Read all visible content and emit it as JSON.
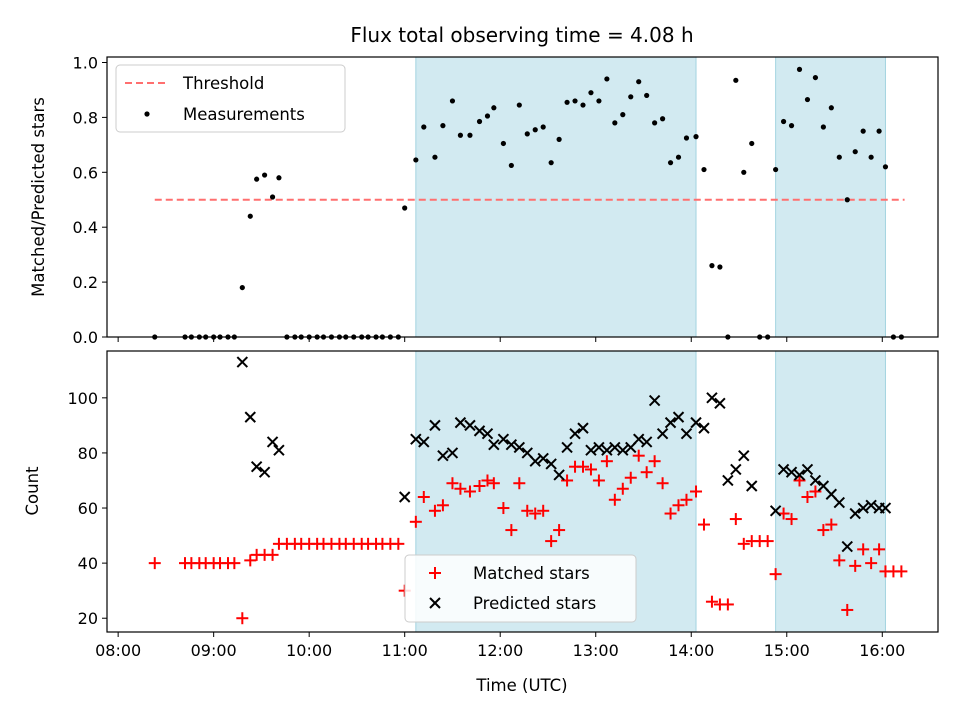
{
  "chart_data": [
    {
      "type": "scatter",
      "title": "Flux total observing time = 4.08 h",
      "xlabel": "",
      "ylabel": "Matched/Predicted stars",
      "xlim": [
        "07:53",
        "16:35"
      ],
      "ylim": [
        0,
        1.02
      ],
      "yticks": [
        0.0,
        0.2,
        0.4,
        0.6,
        0.8,
        1.0
      ],
      "yticklabels": [
        "0.0",
        "0.2",
        "0.4",
        "0.6",
        "0.8",
        "1.0"
      ],
      "xticklabels": [],
      "shaded_intervals": [
        [
          "11:07",
          "14:03"
        ],
        [
          "14:53",
          "16:02"
        ]
      ],
      "threshold": {
        "name": "Threshold",
        "y": 0.5,
        "x_range": [
          "08:23",
          "16:14"
        ],
        "color": "#ff6f6f",
        "style": "dashed"
      },
      "legend": {
        "placement": "upper left",
        "entries": [
          "Threshold",
          "Measurements"
        ]
      },
      "series": [
        {
          "name": "Measurements",
          "color": "#000000",
          "marker": "dot",
          "x": [
            "08:23",
            "08:42",
            "08:46",
            "08:51",
            "08:55",
            "09:00",
            "09:04",
            "09:09",
            "09:13",
            "09:18",
            "09:23",
            "09:27",
            "09:32",
            "09:37",
            "09:41",
            "09:46",
            "09:51",
            "09:55",
            "10:00",
            "10:05",
            "10:09",
            "10:14",
            "10:19",
            "10:23",
            "10:28",
            "10:33",
            "10:37",
            "10:42",
            "10:46",
            "10:51",
            "10:56",
            "11:00",
            "11:07",
            "11:12",
            "11:19",
            "11:24",
            "11:30",
            "11:35",
            "11:41",
            "11:47",
            "11:52",
            "11:56",
            "12:02",
            "12:07",
            "12:12",
            "12:17",
            "12:22",
            "12:27",
            "12:32",
            "12:37",
            "12:42",
            "12:47",
            "12:52",
            "12:57",
            "13:02",
            "13:07",
            "13:12",
            "13:17",
            "13:22",
            "13:27",
            "13:32",
            "13:37",
            "13:42",
            "13:47",
            "13:52",
            "13:57",
            "14:03",
            "14:08",
            "14:13",
            "14:18",
            "14:23",
            "14:28",
            "14:33",
            "14:38",
            "14:43",
            "14:48",
            "14:53",
            "14:58",
            "15:03",
            "15:08",
            "15:13",
            "15:18",
            "15:23",
            "15:28",
            "15:33",
            "15:38",
            "15:43",
            "15:48",
            "15:53",
            "15:58",
            "16:02",
            "16:07",
            "16:12"
          ],
          "y": [
            0,
            0,
            0,
            0,
            0,
            0,
            0,
            0,
            0,
            0.18,
            0.44,
            0.575,
            0.59,
            0.51,
            0.58,
            0,
            0,
            0,
            0,
            0,
            0,
            0,
            0,
            0,
            0,
            0,
            0,
            0,
            0,
            0,
            0,
            0.47,
            0.645,
            0.765,
            0.655,
            0.77,
            0.86,
            0.735,
            0.735,
            0.785,
            0.805,
            0.835,
            0.705,
            0.625,
            0.845,
            0.74,
            0.755,
            0.765,
            0.635,
            0.72,
            0.855,
            0.86,
            0.845,
            0.89,
            0.86,
            0.94,
            0.78,
            0.81,
            0.875,
            0.93,
            0.88,
            0.78,
            0.795,
            0.635,
            0.655,
            0.725,
            0.73,
            0.61,
            0.26,
            0.255,
            0,
            0.935,
            0.6,
            0.705,
            0,
            0,
            0.61,
            0.785,
            0.77,
            0.975,
            0.865,
            0.945,
            0.765,
            0.835,
            0.655,
            0.5,
            0.675,
            0.75,
            0.655,
            0.75,
            0.62,
            0,
            0
          ]
        }
      ]
    },
    {
      "type": "scatter",
      "title": "",
      "xlabel": "Time (UTC)",
      "ylabel": "Count",
      "xlim": [
        "07:53",
        "16:35"
      ],
      "ylim": [
        15,
        117
      ],
      "yticks": [
        20,
        40,
        60,
        80,
        100
      ],
      "yticklabels": [
        "20",
        "40",
        "60",
        "80",
        "100"
      ],
      "xticks": [
        "08:00",
        "09:00",
        "10:00",
        "11:00",
        "12:00",
        "13:00",
        "14:00",
        "15:00",
        "16:00"
      ],
      "xticklabels": [
        "08:00",
        "09:00",
        "10:00",
        "11:00",
        "12:00",
        "13:00",
        "14:00",
        "15:00",
        "16:00"
      ],
      "shaded_intervals": [
        [
          "11:07",
          "14:03"
        ],
        [
          "14:53",
          "16:02"
        ]
      ],
      "legend": {
        "placement": "lower center",
        "entries": [
          "Matched stars",
          "Predicted stars"
        ]
      },
      "series": [
        {
          "name": "Matched stars",
          "color": "#ff0000",
          "marker": "plus",
          "x": [
            "08:23",
            "08:42",
            "08:46",
            "08:51",
            "08:55",
            "09:00",
            "09:04",
            "09:09",
            "09:13",
            "09:18",
            "09:23",
            "09:27",
            "09:32",
            "09:37",
            "09:41",
            "09:46",
            "09:51",
            "09:55",
            "10:00",
            "10:05",
            "10:09",
            "10:14",
            "10:19",
            "10:23",
            "10:28",
            "10:33",
            "10:37",
            "10:42",
            "10:46",
            "10:51",
            "10:56",
            "11:00",
            "11:07",
            "11:12",
            "11:19",
            "11:24",
            "11:30",
            "11:35",
            "11:41",
            "11:47",
            "11:52",
            "11:56",
            "12:02",
            "12:07",
            "12:12",
            "12:17",
            "12:22",
            "12:27",
            "12:32",
            "12:37",
            "12:42",
            "12:47",
            "12:52",
            "12:57",
            "13:02",
            "13:07",
            "13:12",
            "13:17",
            "13:22",
            "13:27",
            "13:32",
            "13:37",
            "13:42",
            "13:47",
            "13:52",
            "13:57",
            "14:03",
            "14:08",
            "14:13",
            "14:18",
            "14:23",
            "14:28",
            "14:33",
            "14:38",
            "14:43",
            "14:48",
            "14:53",
            "14:58",
            "15:03",
            "15:08",
            "15:13",
            "15:18",
            "15:23",
            "15:28",
            "15:33",
            "15:38",
            "15:43",
            "15:48",
            "15:53",
            "15:58",
            "16:02",
            "16:07",
            "16:12"
          ],
          "y": [
            40,
            40,
            40,
            40,
            40,
            40,
            40,
            40,
            40,
            20,
            41,
            43,
            43,
            43,
            47,
            47,
            47,
            47,
            47,
            47,
            47,
            47,
            47,
            47,
            47,
            47,
            47,
            47,
            47,
            47,
            47,
            30,
            55,
            64,
            59,
            61,
            69,
            67,
            66,
            68,
            70,
            69,
            60,
            52,
            69,
            59,
            58,
            59,
            48,
            52,
            70,
            75,
            75,
            74,
            70,
            77,
            63,
            67,
            71,
            79,
            73,
            77,
            69,
            58,
            61,
            63,
            66,
            54,
            26,
            25,
            25,
            56,
            47,
            48,
            48,
            48,
            36,
            58,
            56,
            70,
            64,
            66,
            52,
            54,
            41,
            23,
            39,
            45,
            40,
            45,
            37,
            37,
            37
          ]
        },
        {
          "name": "Predicted stars",
          "color": "#000000",
          "marker": "x",
          "x": [
            "09:18",
            "09:23",
            "09:27",
            "09:32",
            "09:37",
            "09:41",
            "11:00",
            "11:07",
            "11:12",
            "11:19",
            "11:24",
            "11:30",
            "11:35",
            "11:41",
            "11:47",
            "11:52",
            "11:56",
            "12:02",
            "12:07",
            "12:12",
            "12:17",
            "12:22",
            "12:27",
            "12:32",
            "12:37",
            "12:42",
            "12:47",
            "12:52",
            "12:57",
            "13:02",
            "13:07",
            "13:12",
            "13:17",
            "13:22",
            "13:27",
            "13:32",
            "13:37",
            "13:42",
            "13:47",
            "13:52",
            "13:57",
            "14:03",
            "14:08",
            "14:13",
            "14:18",
            "14:23",
            "14:28",
            "14:33",
            "14:38",
            "14:53",
            "14:58",
            "15:03",
            "15:08",
            "15:13",
            "15:18",
            "15:23",
            "15:28",
            "15:33",
            "15:38",
            "15:43",
            "15:48",
            "15:53",
            "15:58",
            "16:02"
          ],
          "y": [
            113,
            93,
            75,
            73,
            84,
            81,
            64,
            85,
            84,
            90,
            79,
            80,
            91,
            90,
            88,
            87,
            83,
            85,
            83,
            82,
            80,
            77,
            78,
            76,
            72,
            82,
            87,
            89,
            81,
            82,
            81,
            82,
            81,
            82,
            85,
            84,
            99,
            87,
            91,
            93,
            87,
            91,
            89,
            100,
            98,
            70,
            74,
            79,
            68,
            59,
            74,
            73,
            72,
            74,
            70,
            68,
            65,
            62,
            46,
            58,
            60,
            61,
            60,
            60
          ]
        }
      ]
    }
  ]
}
